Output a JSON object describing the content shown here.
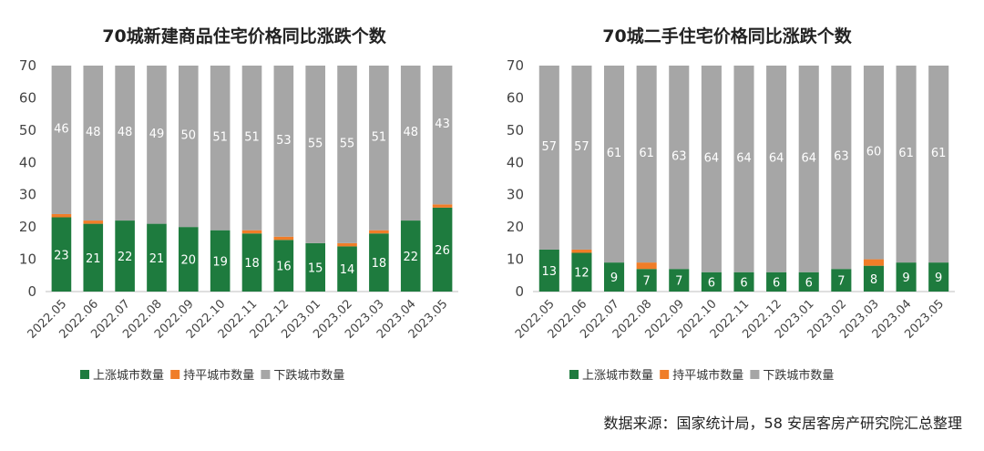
{
  "chart_data": [
    {
      "type": "bar",
      "stacked": true,
      "title": "70城新建商品住宅价格同比涨跌个数",
      "categories": [
        "2022.05",
        "2022.06",
        "2022.07",
        "2022.08",
        "2022.09",
        "2022.10",
        "2022.11",
        "2022.12",
        "2023.01",
        "2023.02",
        "2023.03",
        "2023.04",
        "2023.05"
      ],
      "series": [
        {
          "name": "上涨城市数量",
          "color": "#1e7b3e",
          "values": [
            23,
            21,
            22,
            21,
            20,
            19,
            18,
            16,
            15,
            14,
            18,
            22,
            26
          ]
        },
        {
          "name": "持平城市数量",
          "color": "#f07d28",
          "values": [
            1,
            1,
            0,
            0,
            0,
            0,
            1,
            1,
            0,
            1,
            1,
            0,
            1
          ]
        },
        {
          "name": "下跌城市数量",
          "color": "#a6a6a6",
          "values": [
            46,
            48,
            48,
            49,
            50,
            51,
            51,
            53,
            55,
            55,
            51,
            48,
            43
          ]
        }
      ],
      "ylim": [
        0,
        70
      ],
      "yticks": [
        0,
        10,
        20,
        30,
        40,
        50,
        60,
        70
      ],
      "grid": false,
      "legend": "bottom"
    },
    {
      "type": "bar",
      "stacked": true,
      "title": "70城二手住宅价格同比涨跌个数",
      "categories": [
        "2022.05",
        "2022.06",
        "2022.07",
        "2022.08",
        "2022.09",
        "2022.10",
        "2022.11",
        "2022.12",
        "2023.01",
        "2023.02",
        "2023.03",
        "2023.04",
        "2023.05"
      ],
      "series": [
        {
          "name": "上涨城市数量",
          "color": "#1e7b3e",
          "values": [
            13,
            12,
            9,
            7,
            7,
            6,
            6,
            6,
            6,
            7,
            8,
            9,
            9
          ]
        },
        {
          "name": "持平城市数量",
          "color": "#f07d28",
          "values": [
            0,
            1,
            0,
            2,
            0,
            0,
            0,
            0,
            0,
            0,
            2,
            0,
            0
          ]
        },
        {
          "name": "下跌城市数量",
          "color": "#a6a6a6",
          "values": [
            57,
            57,
            61,
            61,
            63,
            64,
            64,
            64,
            64,
            63,
            60,
            61,
            61
          ]
        }
      ],
      "ylim": [
        0,
        70
      ],
      "yticks": [
        0,
        10,
        20,
        30,
        40,
        50,
        60,
        70
      ],
      "grid": false,
      "legend": "bottom"
    }
  ],
  "source": "数据来源：国家统计局，58 安居客房产研究院汇总整理"
}
